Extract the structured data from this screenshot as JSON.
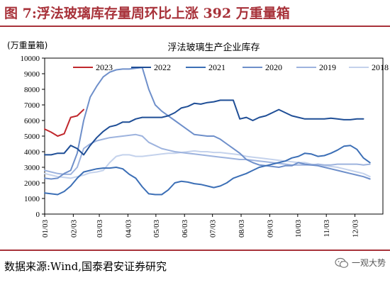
{
  "header": {
    "title": "图 7:浮法玻璃库存量周环比上涨 392 万重量箱"
  },
  "footer": {
    "source": "数据来源:Wind,国泰君安证券研究",
    "watermark": "一观大势"
  },
  "colors": {
    "2023": "#c0282d",
    "2022": "#1f4e96",
    "2021": "#3c6fb6",
    "2020": "#6e8fca",
    "2019": "#9db3de",
    "2018": "#c4d2ec",
    "accent": "#a8323a"
  },
  "chart_data": {
    "type": "line",
    "title": "浮法玻璃生产企业库存",
    "unit_label": "(万重量箱)",
    "ylim": [
      0,
      10000
    ],
    "yticks": [
      0,
      1000,
      2000,
      3000,
      4000,
      5000,
      6000,
      7000,
      8000,
      9000,
      10000
    ],
    "xlim": [
      1,
      53
    ],
    "xticks": [
      {
        "label": "01/03",
        "x": 1
      },
      {
        "label": "02/03",
        "x": 5.4
      },
      {
        "label": "03/03",
        "x": 9.4
      },
      {
        "label": "04/03",
        "x": 13.8
      },
      {
        "label": "05/03",
        "x": 18.1
      },
      {
        "label": "06/03",
        "x": 22.5
      },
      {
        "label": "07/03",
        "x": 26.8
      },
      {
        "label": "08/03",
        "x": 31.2
      },
      {
        "label": "09/03",
        "x": 35.6
      },
      {
        "label": "10/03",
        "x": 39.9
      },
      {
        "label": "11/03",
        "x": 44.3
      },
      {
        "label": "12/03",
        "x": 48.7
      }
    ],
    "grid": false,
    "legend_position": "top",
    "series": [
      {
        "name": "2023",
        "points": [
          [
            1,
            5450
          ],
          [
            2,
            5250
          ],
          [
            3,
            5000
          ],
          [
            4,
            5150
          ],
          [
            5,
            6200
          ],
          [
            6,
            6300
          ],
          [
            7,
            6700
          ]
        ]
      },
      {
        "name": "2022",
        "points": [
          [
            1,
            3800
          ],
          [
            2,
            3800
          ],
          [
            3,
            3900
          ],
          [
            4,
            3900
          ],
          [
            5,
            4400
          ],
          [
            6,
            4200
          ],
          [
            7,
            3800
          ],
          [
            8,
            4400
          ],
          [
            9,
            4900
          ],
          [
            10,
            5300
          ],
          [
            11,
            5600
          ],
          [
            12,
            5700
          ],
          [
            13,
            5900
          ],
          [
            14,
            5900
          ],
          [
            15,
            6100
          ],
          [
            16,
            6200
          ],
          [
            17,
            6200
          ],
          [
            18,
            6200
          ],
          [
            19,
            6200
          ],
          [
            20,
            6300
          ],
          [
            21,
            6500
          ],
          [
            22,
            6800
          ],
          [
            23,
            6900
          ],
          [
            24,
            7100
          ],
          [
            25,
            7050
          ],
          [
            26,
            7150
          ],
          [
            27,
            7200
          ],
          [
            28,
            7300
          ],
          [
            29,
            7300
          ],
          [
            30,
            7300
          ],
          [
            31,
            6100
          ],
          [
            32,
            6200
          ],
          [
            33,
            6000
          ],
          [
            34,
            6200
          ],
          [
            35,
            6300
          ],
          [
            36,
            6500
          ],
          [
            37,
            6700
          ],
          [
            38,
            6500
          ],
          [
            39,
            6300
          ],
          [
            40,
            6200
          ],
          [
            41,
            6100
          ],
          [
            42,
            6100
          ],
          [
            43,
            6100
          ],
          [
            44,
            6100
          ],
          [
            45,
            6150
          ],
          [
            46,
            6100
          ],
          [
            47,
            6050
          ],
          [
            48,
            6050
          ],
          [
            49,
            6100
          ],
          [
            50,
            6100
          ]
        ]
      },
      {
        "name": "2021",
        "points": [
          [
            1,
            1350
          ],
          [
            2,
            1300
          ],
          [
            3,
            1250
          ],
          [
            4,
            1450
          ],
          [
            5,
            1800
          ],
          [
            6,
            2300
          ],
          [
            7,
            2700
          ],
          [
            8,
            2800
          ],
          [
            9,
            2900
          ],
          [
            10,
            2950
          ],
          [
            11,
            2950
          ],
          [
            12,
            3000
          ],
          [
            13,
            2900
          ],
          [
            14,
            2550
          ],
          [
            15,
            2300
          ],
          [
            16,
            1750
          ],
          [
            17,
            1300
          ],
          [
            18,
            1250
          ],
          [
            19,
            1250
          ],
          [
            20,
            1550
          ],
          [
            21,
            2000
          ],
          [
            22,
            2100
          ],
          [
            23,
            2050
          ],
          [
            24,
            1950
          ],
          [
            25,
            1900
          ],
          [
            26,
            1800
          ],
          [
            27,
            1700
          ],
          [
            28,
            1800
          ],
          [
            29,
            2000
          ],
          [
            30,
            2300
          ],
          [
            31,
            2450
          ],
          [
            32,
            2600
          ],
          [
            33,
            2800
          ],
          [
            34,
            3000
          ],
          [
            35,
            3100
          ],
          [
            36,
            3200
          ],
          [
            37,
            3300
          ],
          [
            38,
            3400
          ],
          [
            39,
            3600
          ],
          [
            40,
            3700
          ],
          [
            41,
            3900
          ],
          [
            42,
            3850
          ],
          [
            43,
            3700
          ],
          [
            44,
            3750
          ],
          [
            45,
            3900
          ],
          [
            46,
            4100
          ],
          [
            47,
            4350
          ],
          [
            48,
            4400
          ],
          [
            49,
            4150
          ],
          [
            50,
            3600
          ],
          [
            51,
            3300
          ]
        ]
      },
      {
        "name": "2020",
        "points": [
          [
            1,
            2300
          ],
          [
            2,
            2250
          ],
          [
            3,
            2300
          ],
          [
            4,
            2600
          ],
          [
            5,
            2800
          ],
          [
            6,
            3900
          ],
          [
            7,
            6000
          ],
          [
            8,
            7500
          ],
          [
            9,
            8200
          ],
          [
            10,
            8800
          ],
          [
            11,
            9100
          ],
          [
            12,
            9250
          ],
          [
            13,
            9300
          ],
          [
            14,
            9300
          ],
          [
            15,
            9350
          ],
          [
            16,
            9400
          ],
          [
            17,
            8000
          ],
          [
            18,
            7000
          ],
          [
            19,
            6600
          ],
          [
            20,
            6300
          ],
          [
            21,
            6000
          ],
          [
            22,
            5700
          ],
          [
            23,
            5400
          ],
          [
            24,
            5100
          ],
          [
            25,
            5050
          ],
          [
            26,
            5000
          ],
          [
            27,
            5000
          ],
          [
            28,
            4800
          ],
          [
            29,
            4500
          ],
          [
            30,
            4200
          ],
          [
            31,
            3900
          ],
          [
            32,
            3500
          ],
          [
            33,
            3300
          ],
          [
            34,
            3150
          ],
          [
            35,
            3100
          ],
          [
            36,
            3050
          ],
          [
            37,
            3000
          ],
          [
            38,
            3100
          ],
          [
            39,
            3100
          ],
          [
            40,
            3300
          ],
          [
            41,
            3200
          ],
          [
            42,
            3150
          ],
          [
            43,
            3100
          ],
          [
            44,
            3000
          ],
          [
            45,
            2900
          ],
          [
            46,
            2800
          ],
          [
            47,
            2700
          ],
          [
            48,
            2600
          ],
          [
            49,
            2500
          ],
          [
            50,
            2400
          ],
          [
            51,
            2250
          ]
        ]
      },
      {
        "name": "2019",
        "points": [
          [
            1,
            2800
          ],
          [
            2,
            2700
          ],
          [
            3,
            2600
          ],
          [
            4,
            2550
          ],
          [
            5,
            2550
          ],
          [
            6,
            3000
          ],
          [
            7,
            4200
          ],
          [
            8,
            4500
          ],
          [
            9,
            4700
          ],
          [
            10,
            4800
          ],
          [
            11,
            4900
          ],
          [
            12,
            4950
          ],
          [
            13,
            5000
          ],
          [
            14,
            5050
          ],
          [
            15,
            5100
          ],
          [
            16,
            5000
          ],
          [
            17,
            4600
          ],
          [
            18,
            4400
          ],
          [
            19,
            4200
          ],
          [
            20,
            4100
          ],
          [
            21,
            4000
          ],
          [
            22,
            3950
          ],
          [
            23,
            3900
          ],
          [
            24,
            3850
          ],
          [
            25,
            3800
          ],
          [
            26,
            3750
          ],
          [
            27,
            3700
          ],
          [
            28,
            3650
          ],
          [
            29,
            3600
          ],
          [
            30,
            3550
          ],
          [
            31,
            3500
          ],
          [
            32,
            3500
          ],
          [
            33,
            3450
          ],
          [
            34,
            3400
          ],
          [
            35,
            3350
          ],
          [
            36,
            3300
          ],
          [
            37,
            3250
          ],
          [
            38,
            3200
          ],
          [
            39,
            3150
          ],
          [
            40,
            3150
          ],
          [
            41,
            3150
          ],
          [
            42,
            3150
          ],
          [
            43,
            3200
          ],
          [
            44,
            3150
          ],
          [
            45,
            3150
          ],
          [
            46,
            3200
          ],
          [
            47,
            3200
          ],
          [
            48,
            3200
          ],
          [
            49,
            3200
          ],
          [
            50,
            3150
          ],
          [
            51,
            3200
          ]
        ]
      },
      {
        "name": "2018",
        "points": [
          [
            1,
            2600
          ],
          [
            2,
            2500
          ],
          [
            3,
            2400
          ],
          [
            4,
            2350
          ],
          [
            5,
            2300
          ],
          [
            6,
            2400
          ],
          [
            7,
            2500
          ],
          [
            8,
            2650
          ],
          [
            9,
            2700
          ],
          [
            10,
            2800
          ],
          [
            11,
            3300
          ],
          [
            12,
            3700
          ],
          [
            13,
            3800
          ],
          [
            14,
            3800
          ],
          [
            15,
            3700
          ],
          [
            16,
            3700
          ],
          [
            17,
            3750
          ],
          [
            18,
            3800
          ],
          [
            19,
            3850
          ],
          [
            20,
            3900
          ],
          [
            21,
            3900
          ],
          [
            22,
            3950
          ],
          [
            23,
            4000
          ],
          [
            24,
            4050
          ],
          [
            25,
            4000
          ],
          [
            26,
            4000
          ],
          [
            27,
            3950
          ],
          [
            28,
            3950
          ],
          [
            29,
            3900
          ],
          [
            30,
            3850
          ],
          [
            31,
            3800
          ],
          [
            32,
            3700
          ],
          [
            33,
            3650
          ],
          [
            34,
            3600
          ],
          [
            35,
            3550
          ],
          [
            36,
            3500
          ],
          [
            37,
            3450
          ],
          [
            38,
            3400
          ],
          [
            39,
            3350
          ],
          [
            40,
            3300
          ],
          [
            41,
            3300
          ],
          [
            42,
            3200
          ],
          [
            43,
            3150
          ],
          [
            44,
            3100
          ],
          [
            45,
            3050
          ],
          [
            46,
            3000
          ],
          [
            47,
            2900
          ],
          [
            48,
            2800
          ],
          [
            49,
            2700
          ],
          [
            50,
            2600
          ],
          [
            51,
            2400
          ]
        ]
      }
    ]
  }
}
